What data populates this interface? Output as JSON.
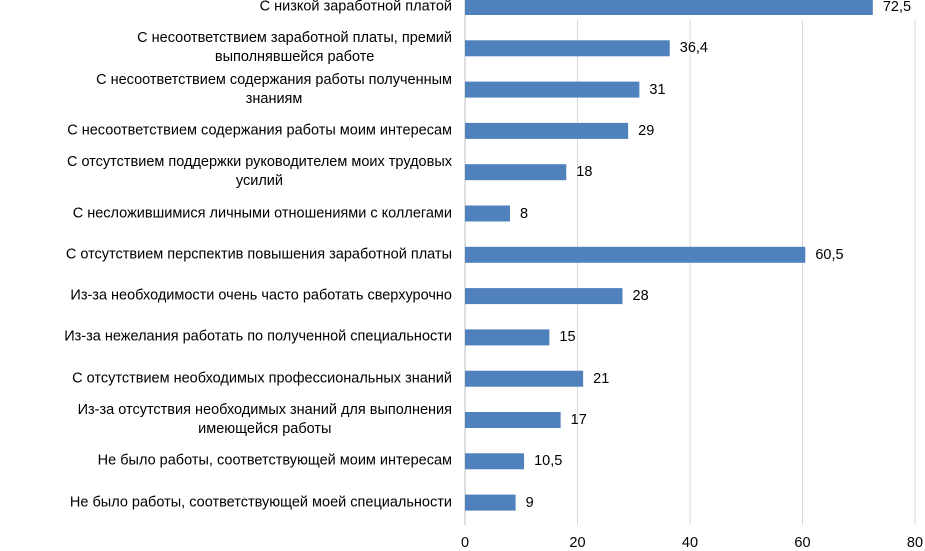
{
  "chart_data": {
    "type": "bar",
    "orientation": "horizontal",
    "categories": [
      "С низкой заработной платой",
      "С несоответствием заработной платы, премий\nвыполнявшейся работе",
      "С несоответствием содержания работы полученным\nзнаниям",
      "С несоответствием содержания работы моим интересам",
      "С отсутствием поддержки руководителем моих трудовых\nусилий",
      "С несложившимися личными отношениями с коллегами",
      "С отсутствием перспектив повышения заработной платы",
      "Из-за необходимости очень часто работать сверхурочно",
      "Из-за нежелания работать по полученной специальности",
      "С отсутствием необходимых профессиональных знаний",
      "Из-за отсутствия необходимых знаний для выполнения\nимеющейся работы",
      "Не было работы, соответствующей моим интересам",
      "Не было работы, соответствующей моей специальности"
    ],
    "values": [
      72.5,
      36.4,
      31,
      29,
      18,
      8,
      60.5,
      28,
      15,
      21,
      17,
      10.5,
      9
    ],
    "value_labels": [
      "72,5",
      "36,4",
      "31",
      "29",
      "18",
      "8",
      "60,5",
      "28",
      "15",
      "21",
      "17",
      "10,5",
      "9"
    ],
    "xlim": [
      0,
      80
    ],
    "xticks": [
      "0",
      "20",
      "40",
      "60",
      "80"
    ],
    "grid": true,
    "bar_color": "#4f81bd",
    "grid_color": "#d9d9d9"
  }
}
